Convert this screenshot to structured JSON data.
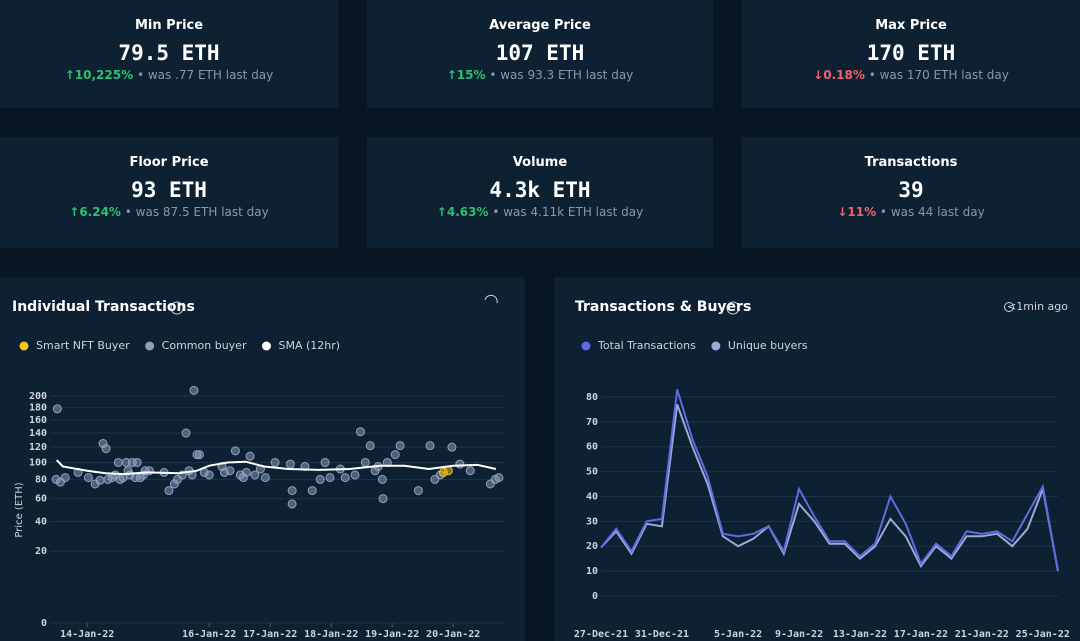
{
  "cards": [
    {
      "title": "Min Price",
      "value": "79.5 ETH",
      "change": "↑10,225%",
      "note": "• was .77 ETH last day",
      "change_color": "#2fbf71"
    },
    {
      "title": "Average Price",
      "value": "107 ETH",
      "change": "↑15%",
      "note": "• was 93.3 ETH last day",
      "change_color": "#2fbf71"
    },
    {
      "title": "Max Price",
      "value": "170 ETH",
      "change": "↓0.18%",
      "note": "• was 170 ETH last day",
      "change_color": "#f0616d"
    },
    {
      "title": "Floor Price",
      "value": "93 ETH",
      "change": "↑6.24%",
      "note": "• was 87.5 ETH last day",
      "change_color": "#2fbf71"
    },
    {
      "title": "Volume",
      "value": "4.3k ETH",
      "change": "↑4.63%",
      "note": "• was 4.11k ETH last day",
      "change_color": "#2fbf71"
    },
    {
      "title": "Transactions",
      "value": "39",
      "change": "↓11%",
      "note": "• was 44 last day",
      "change_color": "#f0616d"
    }
  ],
  "chart_data": [
    {
      "type": "scatter",
      "title": "Individual Transactions",
      "ylabel": "Price (ETH)",
      "yscale": "sqrt",
      "grid": true,
      "xlim": [
        13.39,
        20.85
      ],
      "xticks": [
        {
          "value": 14,
          "label": "14-Jan-22"
        },
        {
          "value": 16,
          "label": "16-Jan-22"
        },
        {
          "value": 17,
          "label": "17-Jan-22"
        },
        {
          "value": 18,
          "label": "18-Jan-22"
        },
        {
          "value": 19,
          "label": "19-Jan-22"
        },
        {
          "value": 20,
          "label": "20-Jan-22"
        }
      ],
      "ylim": [
        0,
        215
      ],
      "yticks": [
        0,
        20,
        40,
        60,
        80,
        100,
        120,
        140,
        160,
        180,
        200
      ],
      "series": [
        {
          "name": "Smart NFT Buyer",
          "color": "#f5c518",
          "x": [
            19.84,
            19.92
          ],
          "values": [
            88,
            90
          ]
        },
        {
          "name": "Common buyer",
          "color": "#8fa0c0",
          "x": [
            13.51,
            13.49,
            13.56,
            13.64,
            13.85,
            14.02,
            14.13,
            14.21,
            14.26,
            14.31,
            14.34,
            14.41,
            14.46,
            14.51,
            14.54,
            14.59,
            14.64,
            14.67,
            14.7,
            14.74,
            14.79,
            14.82,
            14.87,
            14.92,
            14.95,
            15.02,
            15.26,
            15.34,
            15.43,
            15.48,
            15.56,
            15.62,
            15.67,
            15.72,
            15.75,
            15.8,
            15.84,
            15.92,
            16.0,
            16.21,
            16.25,
            16.34,
            16.43,
            16.51,
            16.56,
            16.61,
            16.67,
            16.75,
            16.84,
            16.92,
            17.08,
            17.33,
            17.36,
            17.36,
            17.57,
            17.69,
            17.82,
            17.9,
            17.98,
            18.15,
            18.23,
            18.39,
            18.48,
            18.56,
            18.64,
            18.72,
            18.77,
            18.84,
            18.85,
            18.92,
            19.05,
            19.13,
            19.43,
            19.62,
            19.7,
            19.79,
            19.98,
            20.11,
            20.28,
            20.61,
            20.69,
            20.75
          ],
          "values": [
            178,
            80,
            77,
            82,
            88,
            82,
            75,
            79,
            125,
            118,
            80,
            82,
            85,
            100,
            80,
            82,
            100,
            90,
            85,
            100,
            82,
            100,
            82,
            85,
            90,
            90,
            88,
            68,
            75,
            80,
            85,
            140,
            90,
            85,
            210,
            110,
            110,
            88,
            85,
            95,
            88,
            90,
            115,
            85,
            82,
            88,
            108,
            85,
            92,
            82,
            100,
            98,
            68,
            55,
            95,
            68,
            80,
            100,
            82,
            92,
            82,
            85,
            142,
            100,
            122,
            90,
            95,
            80,
            60,
            100,
            110,
            122,
            68,
            122,
            80,
            85,
            120,
            98,
            90,
            75,
            80,
            82
          ]
        },
        {
          "name": "SMA (12hr)",
          "color": "#ffffff",
          "type": "line",
          "x": [
            13.5,
            13.6,
            14.0,
            14.3,
            14.6,
            15.0,
            15.5,
            15.8,
            16.0,
            16.3,
            16.6,
            16.9,
            17.3,
            17.8,
            18.3,
            18.8,
            19.2,
            19.6,
            20.0,
            20.4,
            20.7
          ],
          "values": [
            103,
            95,
            90,
            87,
            86,
            88,
            87,
            90,
            96,
            100,
            101,
            95,
            92,
            91,
            92,
            96,
            96,
            92,
            96,
            97,
            92
          ]
        }
      ]
    },
    {
      "type": "line",
      "title": "Transactions & Buyers",
      "updated": "<1min ago",
      "grid": true,
      "categories": [
        "27-Dec-21",
        null,
        null,
        null,
        "31-Dec-21",
        null,
        null,
        null,
        null,
        "5-Jan-22",
        null,
        null,
        null,
        "9-Jan-22",
        null,
        null,
        null,
        "13-Jan-22",
        null,
        null,
        null,
        "17-Jan-22",
        null,
        null,
        null,
        "21-Jan-22",
        null,
        null,
        null,
        "25-Jan-22",
        null
      ],
      "ylim": [
        0,
        86
      ],
      "yticks": [
        0,
        10,
        20,
        30,
        40,
        50,
        60,
        70,
        80
      ],
      "series": [
        {
          "name": "Total Transactions",
          "color": "#5b6ee1",
          "values": [
            19.5,
            27,
            18,
            30,
            31,
            83,
            63,
            48,
            25,
            24,
            25,
            28,
            18,
            43,
            32,
            22,
            22,
            16,
            21,
            40,
            29,
            13,
            21,
            16,
            26,
            25,
            26,
            22,
            33,
            44,
            10
          ]
        },
        {
          "name": "Unique buyers",
          "color": "#9aa9d6",
          "values": [
            19.5,
            26,
            17,
            29,
            28,
            77,
            60,
            45,
            24,
            20,
            23,
            28,
            17,
            37,
            30,
            21,
            21,
            15,
            20,
            31,
            24,
            12,
            20,
            15,
            24,
            24,
            25,
            20,
            27,
            43,
            10
          ]
        }
      ]
    }
  ]
}
